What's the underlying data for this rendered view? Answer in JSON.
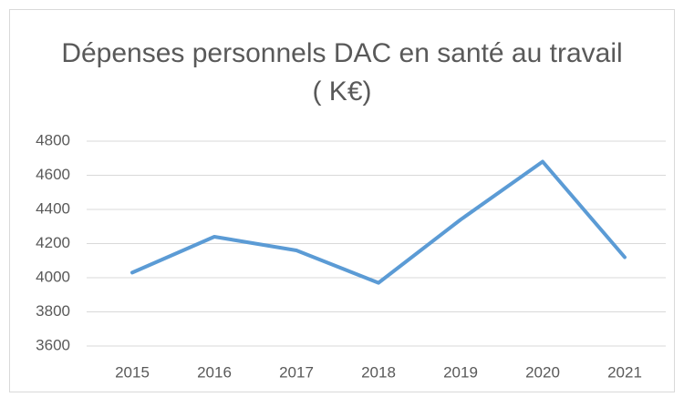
{
  "chart_data": {
    "type": "line",
    "title": "Dépenses personnels DAC en santé au travail ( K€)",
    "categories": [
      "2015",
      "2016",
      "2017",
      "2018",
      "2019",
      "2020",
      "2021"
    ],
    "series": [
      {
        "name": "Dépenses",
        "color": "#5b9bd5",
        "values": [
          4030,
          4240,
          4160,
          3970,
          4340,
          4680,
          4120
        ]
      }
    ],
    "ylim": [
      3600,
      4800
    ],
    "yticks": [
      3600,
      3800,
      4000,
      4200,
      4400,
      4600,
      4800
    ],
    "grid": true
  }
}
